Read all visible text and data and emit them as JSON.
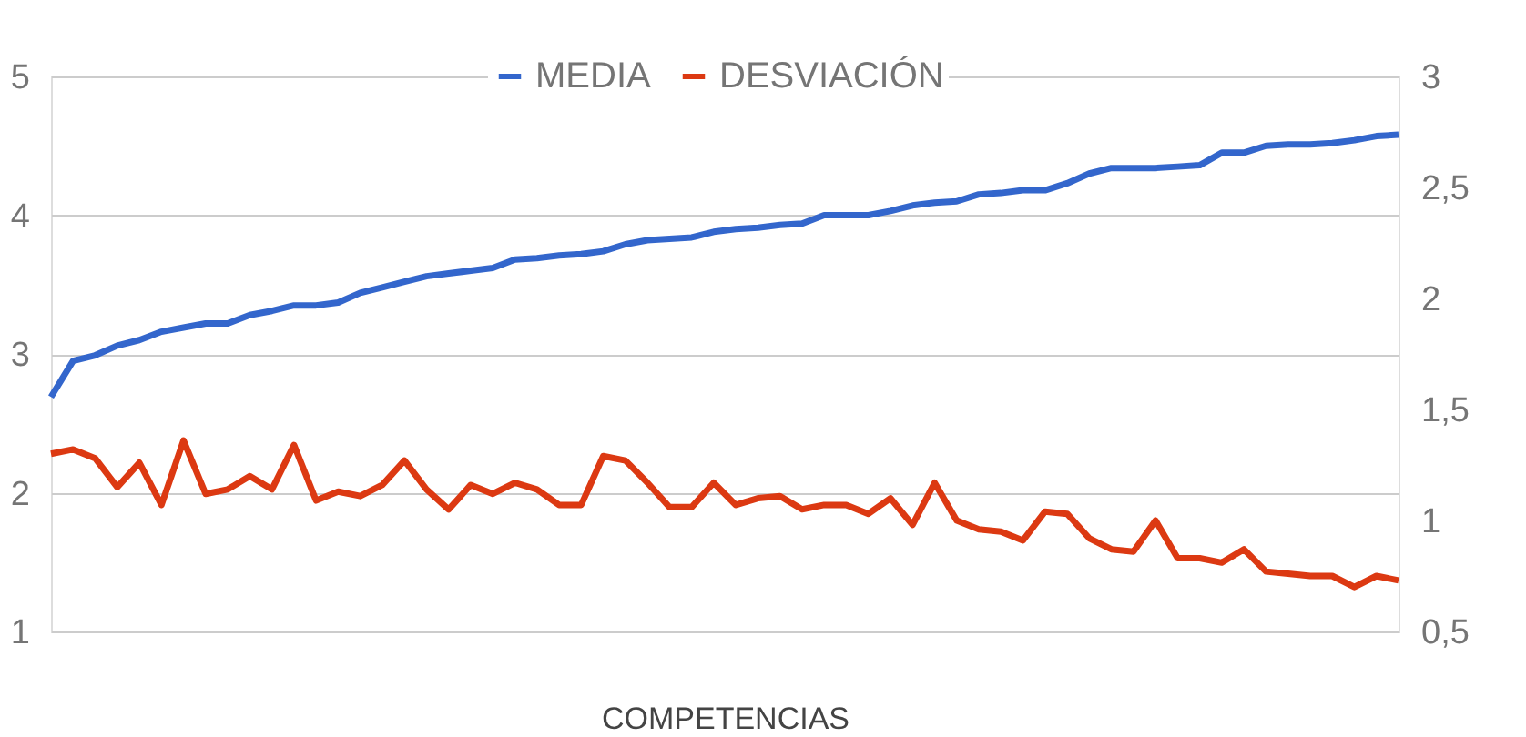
{
  "chart_data": {
    "type": "line",
    "xlabel": "COMPETENCIAS",
    "categories": [
      null,
      null,
      null,
      null,
      null,
      null,
      null,
      null,
      null,
      null,
      null,
      null,
      null,
      null,
      null,
      null,
      null,
      null,
      null,
      null,
      null,
      null,
      null,
      null,
      null,
      null,
      null,
      null,
      null,
      null,
      null,
      null,
      null,
      null,
      null,
      null,
      null,
      null,
      null,
      null,
      null,
      null,
      null,
      null,
      null,
      null,
      null,
      null,
      null,
      null,
      null,
      null,
      null,
      null,
      null,
      null,
      null,
      null,
      null,
      null,
      null,
      null
    ],
    "series": [
      {
        "name": "MEDIA",
        "color": "#3366cc",
        "values": [
          2.69,
          2.95,
          2.99,
          3.06,
          3.1,
          3.16,
          3.19,
          3.22,
          3.22,
          3.28,
          3.31,
          3.35,
          3.35,
          3.37,
          3.44,
          3.48,
          3.52,
          3.56,
          3.58,
          3.6,
          3.62,
          3.68,
          3.69,
          3.71,
          3.72,
          3.74,
          3.79,
          3.82,
          3.83,
          3.84,
          3.88,
          3.9,
          3.91,
          3.93,
          3.94,
          4.0,
          4.0,
          4.0,
          4.03,
          4.07,
          4.09,
          4.1,
          4.15,
          4.16,
          4.18,
          4.18,
          4.23,
          4.3,
          4.34,
          4.34,
          4.34,
          4.35,
          4.36,
          4.45,
          4.45,
          4.5,
          4.51,
          4.51,
          4.52,
          4.54,
          4.57,
          4.58
        ]
      },
      {
        "name": "DESVIACIÓN",
        "color": "#dc3912",
        "axis": "y2",
        "values": [
          1.3,
          1.32,
          1.28,
          1.15,
          1.26,
          1.07,
          1.36,
          1.12,
          1.14,
          1.2,
          1.14,
          1.34,
          1.09,
          1.13,
          1.11,
          1.16,
          1.27,
          1.14,
          1.05,
          1.16,
          1.12,
          1.17,
          1.14,
          1.07,
          1.07,
          1.29,
          1.27,
          1.17,
          1.06,
          1.06,
          1.17,
          1.07,
          1.1,
          1.11,
          1.05,
          1.07,
          1.07,
          1.03,
          1.1,
          0.98,
          1.17,
          1.0,
          0.96,
          0.95,
          0.91,
          1.04,
          1.03,
          0.92,
          0.87,
          0.86,
          1.0,
          0.83,
          0.83,
          0.81,
          0.87,
          0.77,
          0.76,
          0.75,
          0.75,
          0.7,
          0.75,
          0.73
        ]
      }
    ],
    "ylim": [
      1,
      5
    ],
    "yticks": [
      1,
      2,
      3,
      4,
      5
    ],
    "y2lim": [
      0.5,
      3
    ],
    "y2ticks": [
      {
        "value": 0.5,
        "label": "0,5"
      },
      1,
      {
        "value": 1.5,
        "label": "1,5"
      },
      2,
      {
        "value": 2.5,
        "label": "2,5"
      },
      3
    ],
    "grid": "y",
    "legend": "top",
    "tick_labels": "y",
    "line_style": "solid",
    "marker": "none"
  }
}
